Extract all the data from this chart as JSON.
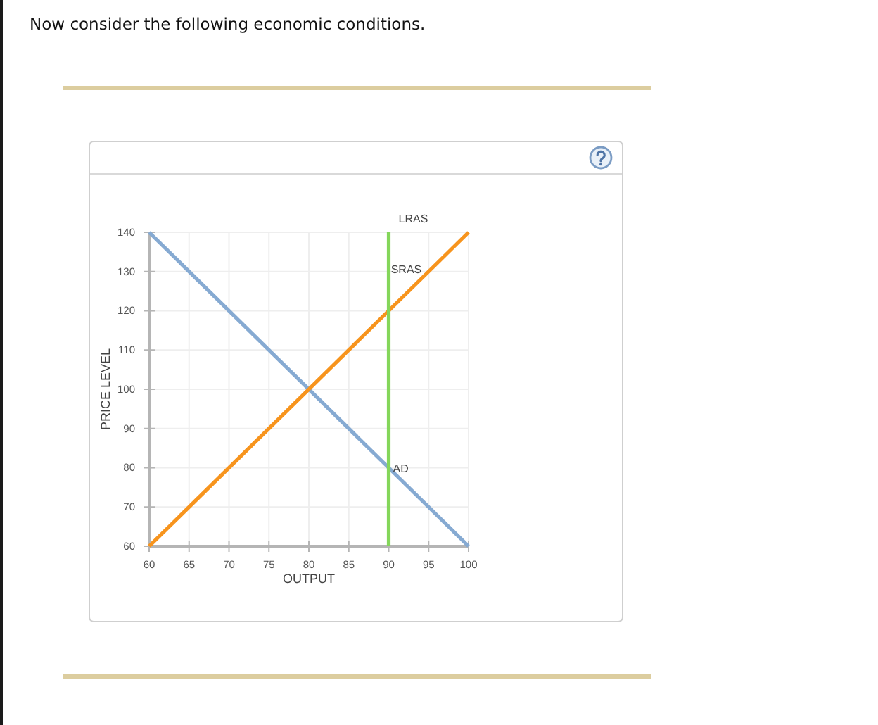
{
  "chart_data": {
    "type": "line",
    "title": "Now consider the following economic conditions.",
    "xlabel": "OUTPUT",
    "ylabel": "PRICE LEVEL",
    "xlim": [
      60,
      100
    ],
    "xticks": [
      60,
      65,
      70,
      75,
      80,
      85,
      90,
      95,
      100
    ],
    "ylim": [
      60,
      140
    ],
    "yticks": [
      60,
      70,
      80,
      90,
      100,
      110,
      120,
      130,
      140
    ],
    "grid": true,
    "series": [
      {
        "name": "AD",
        "color": "#86aad2",
        "x": [
          60,
          90,
          100
        ],
        "values": [
          140,
          80,
          60
        ]
      },
      {
        "name": "SRAS",
        "color": "#f7941d",
        "x": [
          60,
          95,
          100
        ],
        "values": [
          60,
          130,
          140
        ]
      },
      {
        "name": "LRAS",
        "color": "#84d65a",
        "x": [
          90,
          90
        ],
        "values": [
          60,
          140
        ]
      }
    ]
  }
}
